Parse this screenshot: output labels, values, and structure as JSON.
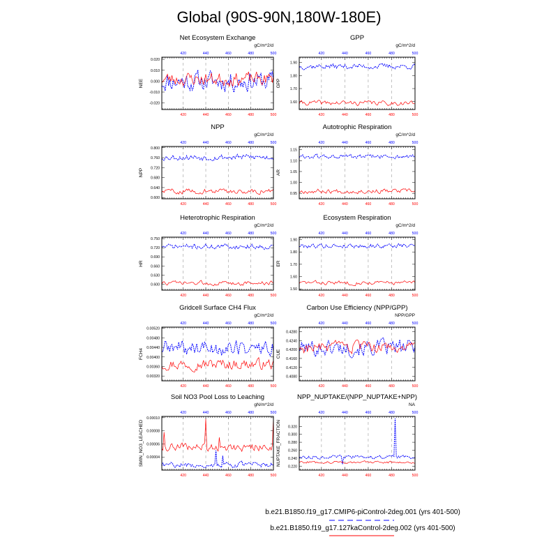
{
  "title": "Global (90S-90N,180W-180E)",
  "legend": [
    {
      "label": "b.e21.B1850.f19_g17.CMIP6-piControl-2deg.001 (yrs 401-500)",
      "color": "#0000ff",
      "style": "dashed"
    },
    {
      "label": "b.e21.B1850.f19_g17.127kaControl-2deg.002 (yrs 401-500)",
      "color": "#ff0000",
      "style": "solid"
    }
  ],
  "chart_data": [
    {
      "type": "line",
      "title": "Net Ecosystem Exchange",
      "ylabel": "NEE",
      "units": "gC/m^2/d",
      "x": [
        401,
        500
      ],
      "xticks": [
        "420",
        "440",
        "460",
        "480",
        "500"
      ],
      "ylim": [
        -0.026,
        0.022
      ],
      "yticks": [
        "0.020",
        "0.010",
        "0.000",
        "-0.010",
        "-0.020"
      ],
      "ytick_values": [
        0.02,
        0.01,
        0.0,
        -0.01,
        -0.02
      ],
      "series": [
        {
          "name": "CMIP6-piControl",
          "color": "#0000ff",
          "mean": 0.0,
          "amp": 0.009,
          "seed": 11,
          "spikes": []
        },
        {
          "name": "127kaControl",
          "color": "#ff0000",
          "mean": 0.002,
          "amp": 0.006,
          "seed": 23,
          "spikes": []
        }
      ]
    },
    {
      "type": "line",
      "title": "GPP",
      "ylabel": "GPP",
      "units": "gC/m^2/d",
      "x": [
        401,
        500
      ],
      "xticks": [
        "420",
        "440",
        "460",
        "480",
        "500"
      ],
      "ylim": [
        1.54,
        1.94
      ],
      "yticks": [
        "1.90",
        "1.80",
        "1.70",
        "1.60"
      ],
      "ytick_values": [
        1.9,
        1.8,
        1.7,
        1.6
      ],
      "series": [
        {
          "name": "CMIP6-piControl",
          "color": "#0000ff",
          "mean": 1.87,
          "amp": 0.02,
          "seed": 37,
          "spikes": []
        },
        {
          "name": "127kaControl",
          "color": "#ff0000",
          "mean": 1.59,
          "amp": 0.018,
          "seed": 41,
          "spikes": []
        }
      ]
    },
    {
      "type": "line",
      "title": "NPP",
      "ylabel": "NPP",
      "units": "gC/m^2/d",
      "x": [
        401,
        500
      ],
      "xticks": [
        "420",
        "440",
        "460",
        "480",
        "500"
      ],
      "ylim": [
        0.595,
        0.805
      ],
      "yticks": [
        "0.800",
        "0.760",
        "0.720",
        "0.680",
        "0.640",
        "0.600"
      ],
      "ytick_values": [
        0.8,
        0.76,
        0.72,
        0.68,
        0.64,
        0.6
      ],
      "series": [
        {
          "name": "CMIP6-piControl",
          "color": "#0000ff",
          "mean": 0.762,
          "amp": 0.012,
          "seed": 53,
          "spikes": []
        },
        {
          "name": "127kaControl",
          "color": "#ff0000",
          "mean": 0.625,
          "amp": 0.01,
          "seed": 59,
          "spikes": []
        }
      ]
    },
    {
      "type": "line",
      "title": "Autotrophic Respiration",
      "ylabel": "AR",
      "units": "gC/m^2/d",
      "x": [
        401,
        500
      ],
      "xticks": [
        "420",
        "440",
        "460",
        "480",
        "500"
      ],
      "ylim": [
        0.925,
        1.165
      ],
      "yticks": [
        "1.15",
        "1.10",
        "1.05",
        "1.00",
        "0.95"
      ],
      "ytick_values": [
        1.15,
        1.1,
        1.05,
        1.0,
        0.95
      ],
      "series": [
        {
          "name": "CMIP6-piControl",
          "color": "#0000ff",
          "mean": 1.118,
          "amp": 0.01,
          "seed": 61,
          "spikes": []
        },
        {
          "name": "127kaControl",
          "color": "#ff0000",
          "mean": 0.96,
          "amp": 0.01,
          "seed": 67,
          "spikes": []
        }
      ]
    },
    {
      "type": "line",
      "title": "Heterotrophic Respiration",
      "ylabel": "HR",
      "units": "gC/m^2/d",
      "x": [
        401,
        500
      ],
      "xticks": [
        "420",
        "440",
        "460",
        "480",
        "500"
      ],
      "ylim": [
        0.58,
        0.755
      ],
      "yticks": [
        "0.750",
        "0.720",
        "0.690",
        "0.660",
        "0.630",
        "0.600"
      ],
      "ytick_values": [
        0.75,
        0.72,
        0.69,
        0.66,
        0.63,
        0.6
      ],
      "series": [
        {
          "name": "CMIP6-piControl",
          "color": "#0000ff",
          "mean": 0.724,
          "amp": 0.008,
          "seed": 71,
          "spikes": []
        },
        {
          "name": "127kaControl",
          "color": "#ff0000",
          "mean": 0.603,
          "amp": 0.007,
          "seed": 73,
          "spikes": []
        }
      ]
    },
    {
      "type": "line",
      "title": "Ecosystem Respiration",
      "ylabel": "ER",
      "units": "gC/m^2/d",
      "x": [
        401,
        500
      ],
      "xticks": [
        "420",
        "440",
        "460",
        "480",
        "500"
      ],
      "ylim": [
        1.49,
        1.92
      ],
      "yticks": [
        "1.90",
        "1.80",
        "1.70",
        "1.60",
        "1.50"
      ],
      "ytick_values": [
        1.9,
        1.8,
        1.7,
        1.6,
        1.5
      ],
      "series": [
        {
          "name": "CMIP6-piControl",
          "color": "#0000ff",
          "mean": 1.85,
          "amp": 0.018,
          "seed": 79,
          "spikes": []
        },
        {
          "name": "127kaControl",
          "color": "#ff0000",
          "mean": 1.55,
          "amp": 0.016,
          "seed": 83,
          "spikes": []
        }
      ]
    },
    {
      "type": "line",
      "title": "Gridcell Surface CH4 Flux",
      "ylabel": "FCH4",
      "units": "gC/m^2/d",
      "x": [
        401,
        500
      ],
      "xticks": [
        "420",
        "440",
        "460",
        "480",
        "500"
      ],
      "ylim": [
        0.003,
        0.00525
      ],
      "yticks": [
        "0.00520",
        "0.00480",
        "0.00440",
        "0.00400",
        "0.00360",
        "0.00320"
      ],
      "ytick_values": [
        0.0052,
        0.0048,
        0.0044,
        0.004,
        0.0036,
        0.0032
      ],
      "series": [
        {
          "name": "CMIP6-piControl",
          "color": "#0000ff",
          "mean": 0.00437,
          "amp": 0.00032,
          "seed": 89,
          "spikes": []
        },
        {
          "name": "127kaControl",
          "color": "#ff0000",
          "mean": 0.0037,
          "amp": 0.00022,
          "seed": 97,
          "spikes": []
        }
      ]
    },
    {
      "type": "line",
      "title": "Carbon Use Efficiency (NPP/GPP)",
      "ylabel": "CUE",
      "units": "NPP/GPP",
      "x": [
        401,
        500
      ],
      "xticks": [
        "420",
        "440",
        "460",
        "480",
        "500"
      ],
      "ylim": [
        0.406,
        0.43
      ],
      "yticks": [
        "0.4280",
        "0.4240",
        "0.4200",
        "0.4160",
        "0.4120",
        "0.4080"
      ],
      "ytick_values": [
        0.428,
        0.424,
        0.42,
        0.416,
        0.412,
        0.408
      ],
      "series": [
        {
          "name": "CMIP6-piControl",
          "color": "#0000ff",
          "mean": 0.4208,
          "amp": 0.0035,
          "seed": 101,
          "spikes": []
        },
        {
          "name": "127kaControl",
          "color": "#ff0000",
          "mean": 0.4208,
          "amp": 0.0025,
          "seed": 103,
          "spikes": []
        }
      ]
    },
    {
      "type": "line",
      "title": "Soil NO3 Pool Loss to Leaching",
      "ylabel": "SMIN_NO3_LEACHED",
      "units": "gN/m^2/d",
      "x": [
        401,
        500
      ],
      "xticks": [
        "420",
        "440",
        "460",
        "480",
        "500"
      ],
      "ylim": [
        2e-05,
        0.000102
      ],
      "yticks": [
        "0.00010",
        "0.00008",
        "0.00006",
        "0.00004"
      ],
      "ytick_values": [
        0.0001,
        8e-05,
        6e-05,
        4e-05
      ],
      "series": [
        {
          "name": "CMIP6-piControl",
          "color": "#0000ff",
          "mean": 2.8e-05,
          "amp": 4e-06,
          "seed": 107,
          "spikes": [
            {
              "x": 449,
              "v": 5e-05
            },
            {
              "x": 455,
              "v": 4.2e-05
            }
          ]
        },
        {
          "name": "127kaControl",
          "color": "#ff0000",
          "mean": 5.5e-05,
          "amp": 6e-06,
          "seed": 109,
          "spikes": [
            {
              "x": 403,
              "v": 7.8e-05
            },
            {
              "x": 440,
              "v": 9.8e-05
            },
            {
              "x": 452,
              "v": 7e-05
            },
            {
              "x": 500,
              "v": 0.0001
            }
          ]
        }
      ]
    },
    {
      "type": "line",
      "title": "NPP_NUPTAKE/(NPP_NUPTAKE+NPP)",
      "ylabel": "NUPTAKE_FRACTION",
      "units": "NA",
      "x": [
        401,
        500
      ],
      "xticks": [
        "420",
        "440",
        "460",
        "480",
        "500"
      ],
      "ylim": [
        0.21,
        0.345
      ],
      "yticks": [
        "0.320",
        "0.300",
        "0.280",
        "0.260",
        "0.240",
        "0.220"
      ],
      "ytick_values": [
        0.32,
        0.3,
        0.28,
        0.26,
        0.24,
        0.22
      ],
      "series": [
        {
          "name": "CMIP6-piControl",
          "color": "#0000ff",
          "mean": 0.243,
          "amp": 0.004,
          "seed": 113,
          "spikes": [
            {
              "x": 483,
              "v": 0.34
            },
            {
              "x": 438,
              "v": 0.225
            }
          ]
        },
        {
          "name": "127kaControl",
          "color": "#ff0000",
          "mean": 0.23,
          "amp": 0.003,
          "seed": 127,
          "spikes": []
        }
      ]
    }
  ]
}
